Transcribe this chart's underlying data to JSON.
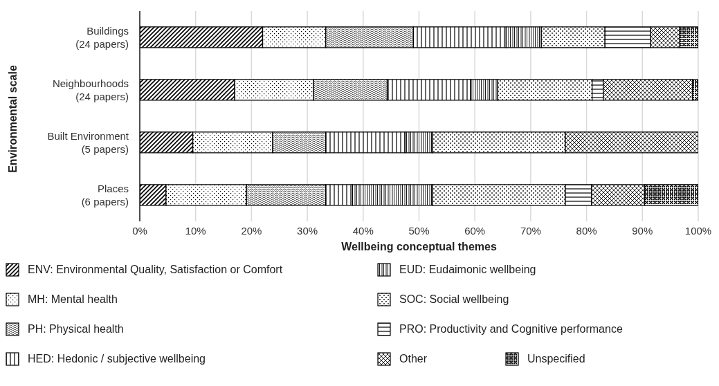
{
  "chart_data": {
    "type": "bar",
    "orientation": "horizontal",
    "stacked": true,
    "xlabel": "Wellbeing conceptual themes",
    "ylabel": "Environmental scale",
    "categories": [
      "Buildings\n(24 papers)",
      "Neighbourhoods\n(24 papers)",
      "Built Environment\n(5 papers)",
      "Places\n(6 papers)"
    ],
    "series": [
      {
        "name": "ENV: Environmental Quality, Satisfaction or Comfort",
        "color": "#000000",
        "values": [
          22.0,
          17.0,
          9.5,
          4.7
        ]
      },
      {
        "name": "MH: Mental health",
        "color": "#000000",
        "values": [
          11.3,
          14.1,
          14.3,
          14.4
        ]
      },
      {
        "name": "PH: Physical health",
        "color": "#000000",
        "values": [
          15.7,
          13.2,
          9.5,
          14.2
        ]
      },
      {
        "name": "HED: Hedonic / subjective wellbeing",
        "color": "#000000",
        "values": [
          16.6,
          14.9,
          14.2,
          4.8
        ]
      },
      {
        "name": "EUD: Eudaimonic wellbeing",
        "color": "#000000",
        "values": [
          6.3,
          4.9,
          4.9,
          14.3
        ]
      },
      {
        "name": "SOC: Social wellbeing",
        "color": "#000000",
        "values": [
          11.4,
          16.9,
          23.8,
          23.8
        ]
      },
      {
        "name": "PRO: Productivity and Cognitive performance",
        "color": "#000000",
        "values": [
          8.2,
          2.0,
          0,
          4.7
        ]
      },
      {
        "name": "Other",
        "color": "#000000",
        "values": [
          5.2,
          16.0,
          23.8,
          9.5
        ]
      },
      {
        "name": "Unspecified",
        "color": "#000000",
        "values": [
          3.3,
          1.0,
          0,
          9.6
        ]
      }
    ],
    "xlim": [
      0,
      100
    ],
    "xticks": [
      {
        "value": 0,
        "label": "0%"
      },
      {
        "value": 10,
        "label": "10%"
      },
      {
        "value": 20,
        "label": "20%"
      },
      {
        "value": 30,
        "label": "30%"
      },
      {
        "value": 40,
        "label": "40%"
      },
      {
        "value": 50,
        "label": "50%"
      },
      {
        "value": 60,
        "label": "60%"
      },
      {
        "value": 70,
        "label": "70%"
      },
      {
        "value": 80,
        "label": "80%"
      },
      {
        "value": 90,
        "label": "90%"
      },
      {
        "value": 100,
        "label": "100%"
      }
    ],
    "grid": "x",
    "legend": "bottom"
  }
}
